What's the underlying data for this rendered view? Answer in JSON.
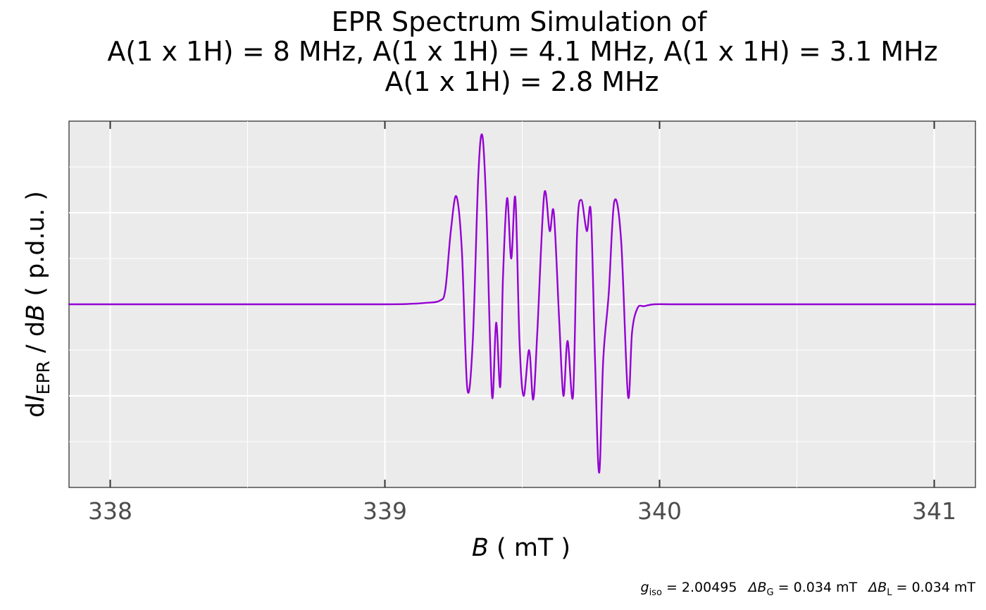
{
  "chart_data": {
    "type": "line",
    "title_lines": [
      "EPR Spectrum Simulation of",
      "A(1 x 1H) = 8 MHz, A(1 x 1H) = 4.1 MHz, A(1 x 1H) = 3.1 MHz",
      "A(1 x 1H) = 2.8 MHz"
    ],
    "xlabel": {
      "symbol": "B",
      "unit": "( mT )"
    },
    "ylabel": {
      "prefix": "d",
      "symbol": "I",
      "sub": "EPR",
      "mid": " / d",
      "symbol2": "B",
      "unit": " ( p.d.u. )"
    },
    "xlim": [
      337.85,
      341.15
    ],
    "ylim": [
      -1.0,
      1.0
    ],
    "x_ticks": [
      338,
      339,
      340,
      341
    ],
    "x_minor": [
      338.5,
      339.5,
      340.5
    ],
    "y_gridlines": [
      -0.75,
      -0.5,
      -0.25,
      0,
      0.25,
      0.5,
      0.75
    ],
    "y_tick_labels_shown": false,
    "grid": true,
    "panel_background": "#ebebeb",
    "line_color": "#9400d3",
    "line_width": 2.4,
    "series": [
      {
        "x": [
          337.85,
          338.5,
          339.0,
          339.1,
          339.15,
          339.2,
          339.22,
          339.24,
          339.26,
          339.28,
          339.3,
          339.32,
          339.34,
          339.355,
          339.37,
          339.39,
          339.405,
          339.42,
          339.43,
          339.445,
          339.46,
          339.475,
          339.49,
          339.505,
          339.525,
          339.54,
          339.555,
          339.58,
          339.6,
          339.615,
          339.635,
          339.65,
          339.665,
          339.685,
          339.7,
          339.715,
          339.735,
          339.75,
          339.765,
          339.78,
          339.795,
          339.815,
          339.835,
          339.86,
          339.885,
          339.9,
          339.92,
          339.945,
          339.98,
          340.05,
          340.2,
          341.15
        ],
        "y": [
          0.0,
          0.0,
          0.0,
          0.003,
          0.008,
          0.02,
          0.08,
          0.4,
          0.59,
          0.3,
          -0.46,
          -0.2,
          0.7,
          0.92,
          0.5,
          -0.5,
          -0.1,
          -0.45,
          0.15,
          0.58,
          0.25,
          0.58,
          -0.2,
          -0.5,
          -0.25,
          -0.52,
          -0.15,
          0.6,
          0.4,
          0.5,
          -0.1,
          -0.5,
          -0.2,
          -0.5,
          0.4,
          0.57,
          0.4,
          0.5,
          -0.3,
          -0.92,
          -0.3,
          0.06,
          0.56,
          0.35,
          -0.5,
          -0.15,
          -0.02,
          -0.01,
          0.0,
          0.0,
          0.0,
          0.0
        ]
      }
    ]
  },
  "caption": {
    "g_sym": "g",
    "g_sub": "iso",
    "g_val": " = 2.00495",
    "bg_sym": "ΔB",
    "bg_sub": "G",
    "bg_val": " = 0.034  mT",
    "bl_sym": "ΔB",
    "bl_sub": "L",
    "bl_val": " = 0.034  mT"
  }
}
